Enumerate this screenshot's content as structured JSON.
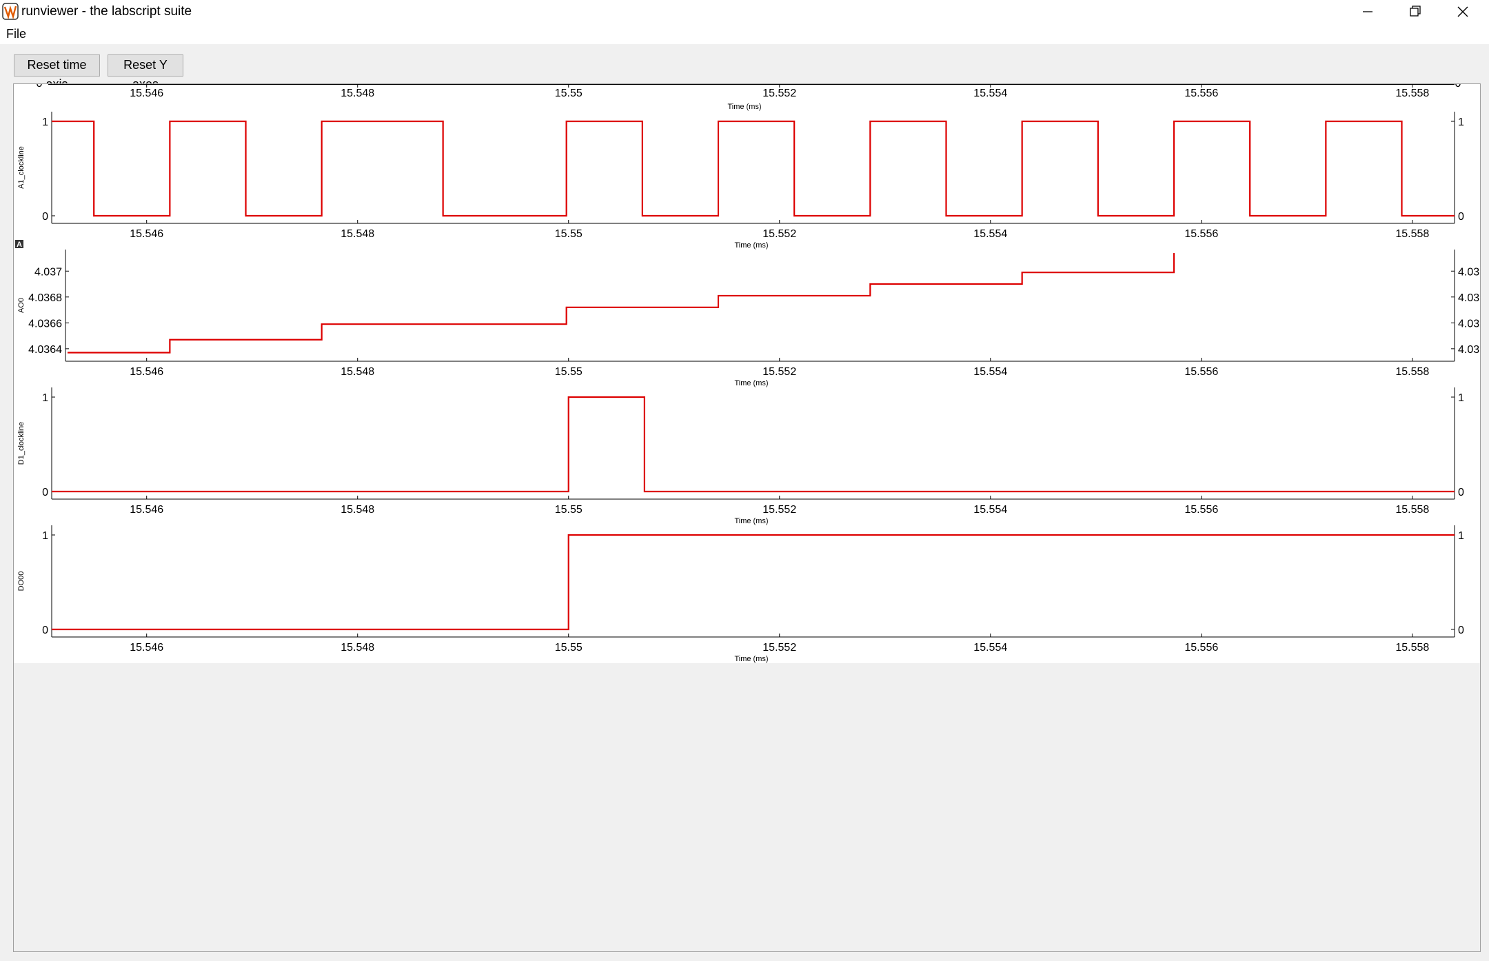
{
  "window": {
    "title": "runviewer - the labscript suite",
    "icon": "labscript-logo-icon"
  },
  "window_controls": [
    "minimize-icon",
    "restore-icon",
    "close-icon"
  ],
  "menu": {
    "items": [
      "File"
    ]
  },
  "toolbar": {
    "reset_time_label": "Reset time axis",
    "reset_y_label": "Reset Y axes"
  },
  "colors": {
    "trace": "#dd0000",
    "plot_background": "#ffffff",
    "window_background": "#f0f0f0"
  },
  "top_axis": {
    "ticks": [
      "15.546",
      "15.548",
      "15.55",
      "15.552",
      "15.554",
      "15.556",
      "15.558"
    ],
    "tick_values": [
      15.546,
      15.548,
      15.55,
      15.552,
      15.554,
      15.556,
      15.558
    ],
    "xlabel": "Time (ms)",
    "edge_label": "0"
  },
  "chart_data": [
    {
      "type": "line",
      "step": "post",
      "ylabel": "A1_clockline",
      "xlabel": "Time (ms)",
      "xlim": [
        15.5451,
        15.5584
      ],
      "ylim": [
        -0.08,
        1.05
      ],
      "yticks": [
        0,
        1
      ],
      "ytick_labels": [
        "0",
        "1"
      ],
      "xticks": [
        15.546,
        15.548,
        15.55,
        15.552,
        15.554,
        15.556,
        15.558
      ],
      "xtick_labels": [
        "15.546",
        "15.548",
        "15.55",
        "15.552",
        "15.554",
        "15.556",
        "15.558"
      ],
      "series": [
        {
          "x": [
            15.5451,
            15.5455,
            15.54622,
            15.54694,
            15.54766,
            15.54881,
            15.54998,
            15.5507,
            15.55142,
            15.55214,
            15.55286,
            15.55358,
            15.5543,
            15.55502,
            15.55574,
            15.55646,
            15.55718,
            15.5579,
            15.5584
          ],
          "y": [
            1,
            0,
            1,
            0,
            1,
            0,
            1,
            0,
            1,
            0,
            1,
            0,
            1,
            0,
            1,
            0,
            1,
            0,
            0
          ]
        }
      ]
    },
    {
      "type": "line",
      "step": "post",
      "ylabel": "AO0",
      "xlabel": "Time (ms)",
      "xlim": [
        15.5451,
        15.5584
      ],
      "ylim": [
        4.03633,
        4.03714
      ],
      "yticks": [
        4.0364,
        4.0366,
        4.0368,
        4.037
      ],
      "ytick_labels": [
        "4.0364",
        "4.0366",
        "4.0368",
        "4.037"
      ],
      "xticks": [
        15.546,
        15.548,
        15.55,
        15.552,
        15.554,
        15.556,
        15.558
      ],
      "xtick_labels": [
        "15.546",
        "15.548",
        "15.55",
        "15.552",
        "15.554",
        "15.556",
        "15.558"
      ],
      "series": [
        {
          "x": [
            15.54525,
            15.54622,
            15.54766,
            15.54998,
            15.55142,
            15.55286,
            15.5543,
            15.55574
          ],
          "y": [
            4.03637,
            4.03647,
            4.03659,
            4.03672,
            4.03681,
            4.0369,
            4.03699,
            4.03706
          ]
        }
      ]
    },
    {
      "type": "line",
      "step": "post",
      "ylabel": "D1_clockline",
      "xlabel": "Time (ms)",
      "xlim": [
        15.5451,
        15.5584
      ],
      "ylim": [
        -0.08,
        1.05
      ],
      "yticks": [
        0,
        1
      ],
      "ytick_labels": [
        "0",
        "1"
      ],
      "xticks": [
        15.546,
        15.548,
        15.55,
        15.552,
        15.554,
        15.556,
        15.558
      ],
      "xtick_labels": [
        "15.546",
        "15.548",
        "15.55",
        "15.552",
        "15.554",
        "15.556",
        "15.558"
      ],
      "series": [
        {
          "x": [
            15.5451,
            15.55,
            15.55072,
            15.5584
          ],
          "y": [
            0,
            1,
            0,
            0
          ]
        }
      ]
    },
    {
      "type": "line",
      "step": "post",
      "ylabel": "DO00",
      "xlabel": "Time (ms)",
      "xlim": [
        15.5451,
        15.5584
      ],
      "ylim": [
        -0.08,
        1.05
      ],
      "yticks": [
        0,
        1
      ],
      "ytick_labels": [
        "0",
        "1"
      ],
      "xticks": [
        15.546,
        15.548,
        15.55,
        15.552,
        15.554,
        15.556,
        15.558
      ],
      "xtick_labels": [
        "15.546",
        "15.548",
        "15.55",
        "15.552",
        "15.554",
        "15.556",
        "15.558"
      ],
      "series": [
        {
          "x": [
            15.5451,
            15.55,
            15.5584
          ],
          "y": [
            0,
            1,
            1
          ]
        }
      ]
    }
  ]
}
